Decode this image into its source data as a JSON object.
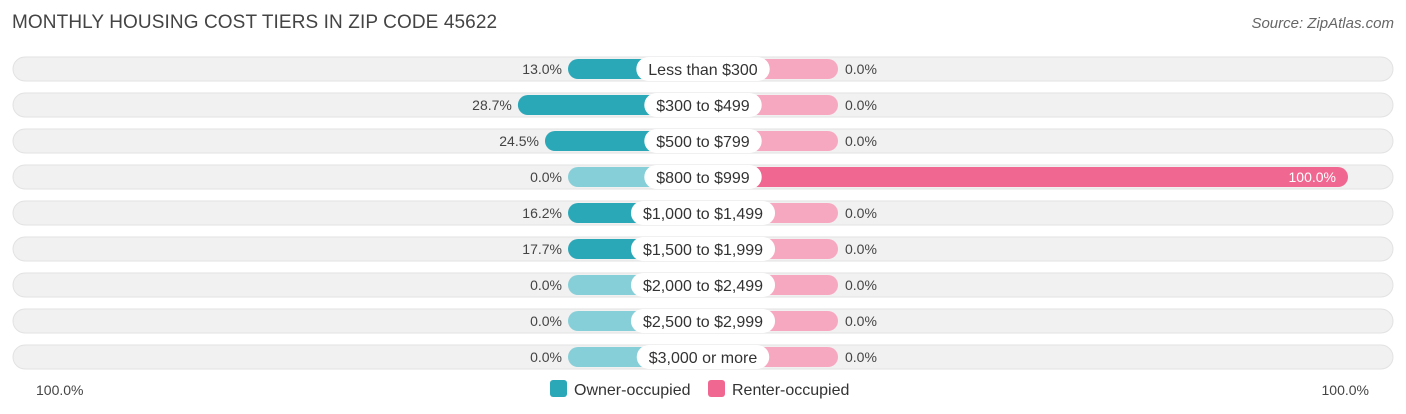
{
  "title": "MONTHLY HOUSING COST TIERS IN ZIP CODE 45622",
  "source": "Source: ZipAtlas.com",
  "colors": {
    "owner": "#2ba8b8",
    "owner_light": "#86cfd8",
    "renter": "#f06892",
    "renter_light": "#f7a8c1",
    "track": "#f1f1f1"
  },
  "chart_data": {
    "type": "bar",
    "orientation": "horizontal-diverging",
    "categories": [
      "Less than $300",
      "$300 to $499",
      "$500 to $799",
      "$800 to $999",
      "$1,000 to $1,499",
      "$1,500 to $1,999",
      "$2,000 to $2,499",
      "$2,500 to $2,999",
      "$3,000 or more"
    ],
    "series": [
      {
        "name": "Owner-occupied",
        "values": [
          13.0,
          28.7,
          24.5,
          0.0,
          16.2,
          17.7,
          0.0,
          0.0,
          0.0
        ],
        "labels": [
          "13.0%",
          "28.7%",
          "24.5%",
          "0.0%",
          "16.2%",
          "17.7%",
          "0.0%",
          "0.0%",
          "0.0%"
        ]
      },
      {
        "name": "Renter-occupied",
        "values": [
          0.0,
          0.0,
          0.0,
          100.0,
          0.0,
          0.0,
          0.0,
          0.0,
          0.0
        ],
        "labels": [
          "0.0%",
          "0.0%",
          "0.0%",
          "100.0%",
          "0.0%",
          "0.0%",
          "0.0%",
          "0.0%",
          "0.0%"
        ]
      }
    ],
    "axis_left_label": "100.0%",
    "axis_right_label": "100.0%",
    "xlim": [
      -100,
      100
    ],
    "legend": "bottom-center"
  }
}
